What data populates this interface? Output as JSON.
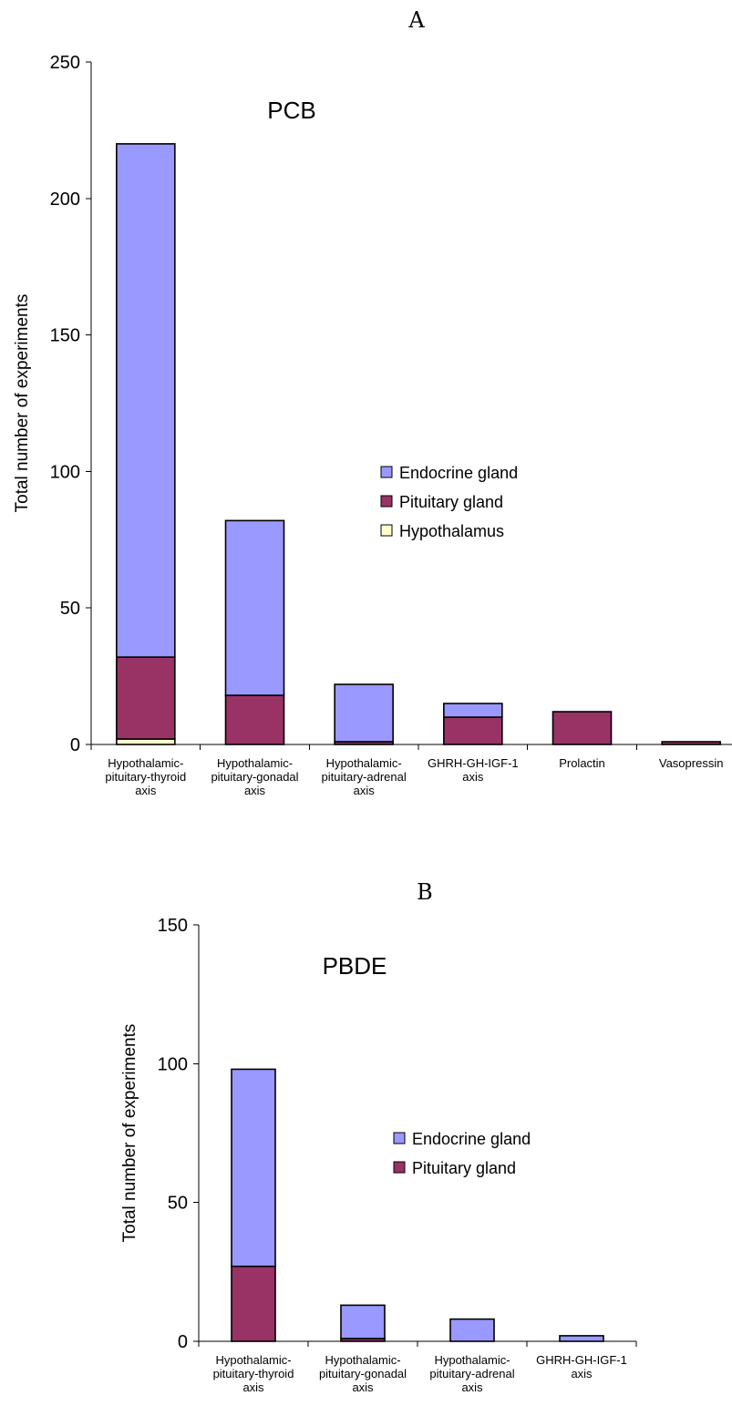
{
  "chart_data": [
    {
      "type": "bar",
      "stacked": true,
      "panel_label": "A",
      "title": "PCB",
      "ylabel": "Total number of experiments",
      "ylim": [
        0,
        250
      ],
      "yticks": [
        0,
        50,
        100,
        150,
        200,
        250
      ],
      "categories": [
        [
          "Hypothalamic-",
          "pituitary-thyroid",
          "axis"
        ],
        [
          "Hypothalamic-",
          "pituitary-gonadal",
          "axis"
        ],
        [
          "Hypothalamic-",
          "pituitary-adrenal",
          "axis"
        ],
        [
          "GHRH-GH-IGF-1",
          "axis"
        ],
        [
          "Prolactin"
        ],
        [
          "Vasopressin"
        ]
      ],
      "series": [
        {
          "name": "Hypothalamus",
          "color": "#ffffcc",
          "values": [
            2,
            0,
            0,
            0,
            0,
            0
          ]
        },
        {
          "name": "Pituitary gland",
          "color": "#993366",
          "values": [
            30,
            18,
            1,
            10,
            12,
            1
          ]
        },
        {
          "name": "Endocrine gland",
          "color": "#9999ff",
          "values": [
            188,
            64,
            21,
            5,
            0,
            0
          ]
        }
      ],
      "legend_order": [
        "Endocrine gland",
        "Pituitary gland",
        "Hypothalamus"
      ],
      "legend_position": "center-right"
    },
    {
      "type": "bar",
      "stacked": true,
      "panel_label": "B",
      "title": "PBDE",
      "ylabel": "Total number of experiments",
      "ylim": [
        0,
        150
      ],
      "yticks": [
        0,
        50,
        100,
        150
      ],
      "categories": [
        [
          "Hypothalamic-",
          "pituitary-thyroid",
          "axis"
        ],
        [
          "Hypothalamic-",
          "pituitary-gonadal",
          "axis"
        ],
        [
          "Hypothalamic-",
          "pituitary-adrenal",
          "axis"
        ],
        [
          "GHRH-GH-IGF-1",
          "axis"
        ]
      ],
      "series": [
        {
          "name": "Pituitary gland",
          "color": "#993366",
          "values": [
            27,
            1,
            0,
            0
          ]
        },
        {
          "name": "Endocrine gland",
          "color": "#9999ff",
          "values": [
            71,
            12,
            8,
            2
          ]
        }
      ],
      "legend_order": [
        "Endocrine gland",
        "Pituitary gland"
      ],
      "legend_position": "center-right"
    }
  ]
}
